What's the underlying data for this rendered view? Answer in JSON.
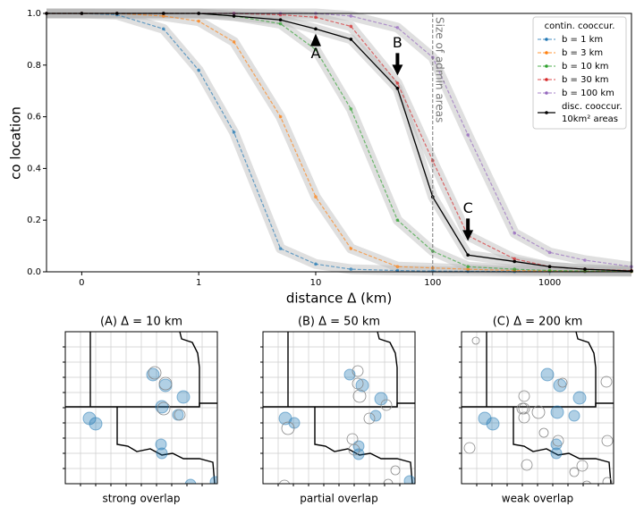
{
  "chart_data": {
    "type": "line",
    "xlabel": "distance Δ (km)",
    "ylabel": "co location",
    "x": [
      0.05,
      0.1,
      0.2,
      0.5,
      1,
      2,
      5,
      10,
      20,
      50,
      100,
      200,
      500,
      1000,
      2000,
      5000
    ],
    "xscale": "log",
    "xlim": [
      0.05,
      5000
    ],
    "xticks": [
      {
        "value": 0.1,
        "label": "0"
      },
      1,
      10,
      100,
      1000
    ],
    "ylim": [
      0,
      1
    ],
    "yticks": [
      {
        "value": 0,
        "label": "0.0"
      },
      0.2,
      0.4,
      0.6,
      0.8,
      {
        "value": 1,
        "label": "1.0"
      }
    ],
    "legend_title": "contin. cooccur.",
    "legend_position": "upper right",
    "series": [
      {
        "name": "b = 1 km",
        "color": "#1f77b4",
        "style": "dashed",
        "values": [
          1,
          1,
          0.995,
          0.94,
          0.78,
          0.54,
          0.09,
          0.03,
          0.01,
          0.005,
          0.003,
          0.002,
          0.001,
          0.001,
          0.001,
          0.001
        ]
      },
      {
        "name": "b = 3 km",
        "color": "#ff7f0e",
        "style": "dashed",
        "values": [
          1,
          1,
          1,
          0.99,
          0.97,
          0.89,
          0.6,
          0.29,
          0.09,
          0.02,
          0.015,
          0.01,
          0.005,
          0.003,
          0.002,
          0.001
        ]
      },
      {
        "name": "b = 10 km",
        "color": "#2ca02c",
        "style": "dashed",
        "values": [
          1,
          1,
          1,
          1,
          1,
          0.99,
          0.96,
          0.86,
          0.63,
          0.2,
          0.08,
          0.02,
          0.01,
          0.005,
          0.003,
          0.002
        ]
      },
      {
        "name": "b = 30 km",
        "color": "#d62728",
        "style": "dashed",
        "values": [
          1,
          1,
          1,
          1,
          1,
          1,
          0.995,
          0.985,
          0.95,
          0.73,
          0.43,
          0.14,
          0.05,
          0.02,
          0.01,
          0.005
        ]
      },
      {
        "name": "b = 100 km",
        "color": "#9467bd",
        "style": "dashed",
        "values": [
          1,
          1,
          1,
          1,
          1,
          1,
          1,
          1,
          0.99,
          0.945,
          0.83,
          0.53,
          0.15,
          0.075,
          0.045,
          0.02
        ]
      },
      {
        "name": "disc. cooccur. 10km² areas",
        "color": "#000000",
        "style": "solid",
        "values": [
          1,
          1,
          1,
          1,
          1,
          0.99,
          0.975,
          0.94,
          0.9,
          0.71,
          0.29,
          0.065,
          0.04,
          0.02,
          0.01,
          0.003
        ]
      }
    ],
    "vline": {
      "x": 100,
      "label": "Size of admin areas"
    },
    "annotations": [
      {
        "text": "A",
        "x": 10,
        "y": 0.88,
        "direction": "up"
      },
      {
        "text": "B",
        "x": 50,
        "y": 0.76,
        "direction": "down"
      },
      {
        "text": "C",
        "x": 200,
        "y": 0.12,
        "direction": "down"
      }
    ],
    "panels": [
      {
        "title": "(A) Δ = 10 km",
        "caption": "strong overlap"
      },
      {
        "title": "(B) Δ = 50 km",
        "caption": "partial overlap"
      },
      {
        "title": "(C) Δ = 200 km",
        "caption": "weak overlap"
      }
    ]
  }
}
